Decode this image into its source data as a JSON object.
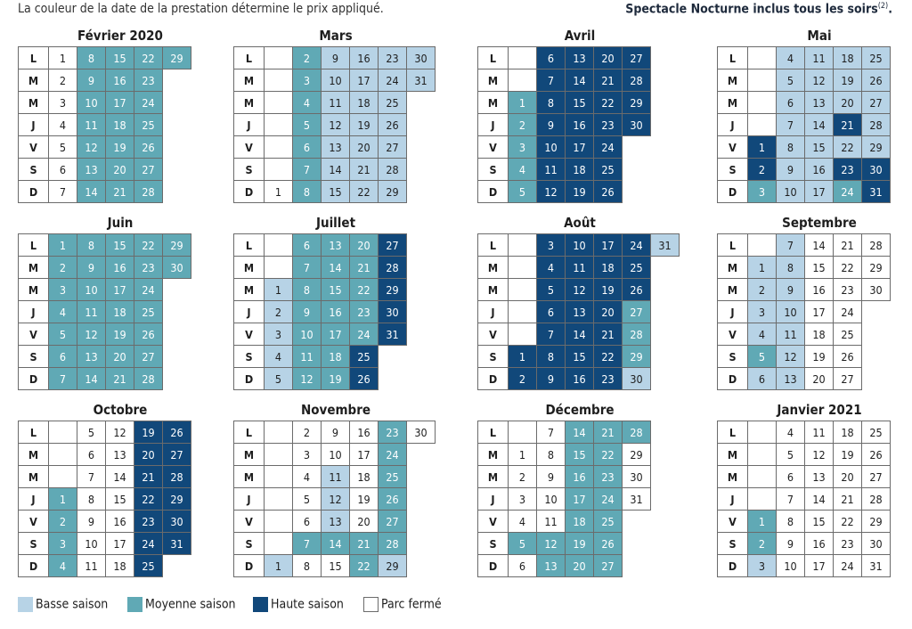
{
  "header": {
    "note": "La couleur de la date de la prestation détermine le prix appliqué.",
    "right": "Spectacle Nocturne inclus tous les soirs",
    "right_sup": "(2)"
  },
  "day_labels": [
    "L",
    "M",
    "M",
    "J",
    "V",
    "S",
    "D"
  ],
  "colors": {
    "basse": "#b7d3e6",
    "moyenne": "#60a9b5",
    "haute": "#11487a",
    "ferme": "#ffffff"
  },
  "legend": [
    {
      "season": "basse",
      "label": "Basse saison"
    },
    {
      "season": "moyenne",
      "label": "Moyenne saison"
    },
    {
      "season": "haute",
      "label": "Haute saison"
    },
    {
      "season": "ferme",
      "label": "Parc fermé"
    }
  ],
  "months": [
    {
      "name": "Février 2020",
      "lead": 0,
      "days": 29,
      "seasons": {
        "1-7": "c",
        "8-29": "m"
      }
    },
    {
      "name": "Mars",
      "lead": 6,
      "days": 31,
      "seasons": {
        "1": "c",
        "2-8": "m",
        "9-31": "b"
      }
    },
    {
      "name": "Avril",
      "lead": 2,
      "days": 30,
      "seasons": {
        "1-5": "m",
        "6-30": "h"
      }
    },
    {
      "name": "Mai",
      "lead": 4,
      "days": 31,
      "seasons": {
        "1-2": "h",
        "3": "m",
        "4-20": "b",
        "21": "h",
        "22": "b",
        "23": "h",
        "24": "m",
        "25-29": "b",
        "30-31": "h"
      }
    },
    {
      "name": "Juin",
      "lead": 0,
      "days": 30,
      "seasons": {
        "1-30": "m"
      }
    },
    {
      "name": "Juillet",
      "lead": 2,
      "days": 31,
      "seasons": {
        "1-5": "b",
        "6-24": "m",
        "25-31": "h"
      }
    },
    {
      "name": "Août",
      "lead": 5,
      "days": 31,
      "seasons": {
        "1-26": "h",
        "27-29": "m",
        "30-31": "b"
      }
    },
    {
      "name": "Septembre",
      "lead": 1,
      "days": 30,
      "seasons": {
        "1-4": "b",
        "5": "m",
        "6-13": "b",
        "14-30": "c"
      }
    },
    {
      "name": "Octobre",
      "lead": 3,
      "days": 31,
      "seasons": {
        "1-4": "m",
        "5-18": "c",
        "19-31": "h"
      }
    },
    {
      "name": "Novembre",
      "lead": 6,
      "days": 30,
      "seasons": {
        "1": "b",
        "2-6": "c",
        "7": "m",
        "8-10": "c",
        "11-13": "b",
        "14": "m",
        "15-20": "c",
        "21-28": "m",
        "29": "b",
        "30": "c"
      }
    },
    {
      "name": "Décembre",
      "lead": 1,
      "days": 31,
      "seasons": {
        "1-4": "c",
        "5": "m",
        "6-11": "c",
        "12-28": "m",
        "29-31": "c"
      }
    },
    {
      "name": "Janvier 2021",
      "lead": 4,
      "days": 31,
      "seasons": {
        "1-2": "m",
        "3": "b",
        "4-31": "c"
      }
    }
  ]
}
